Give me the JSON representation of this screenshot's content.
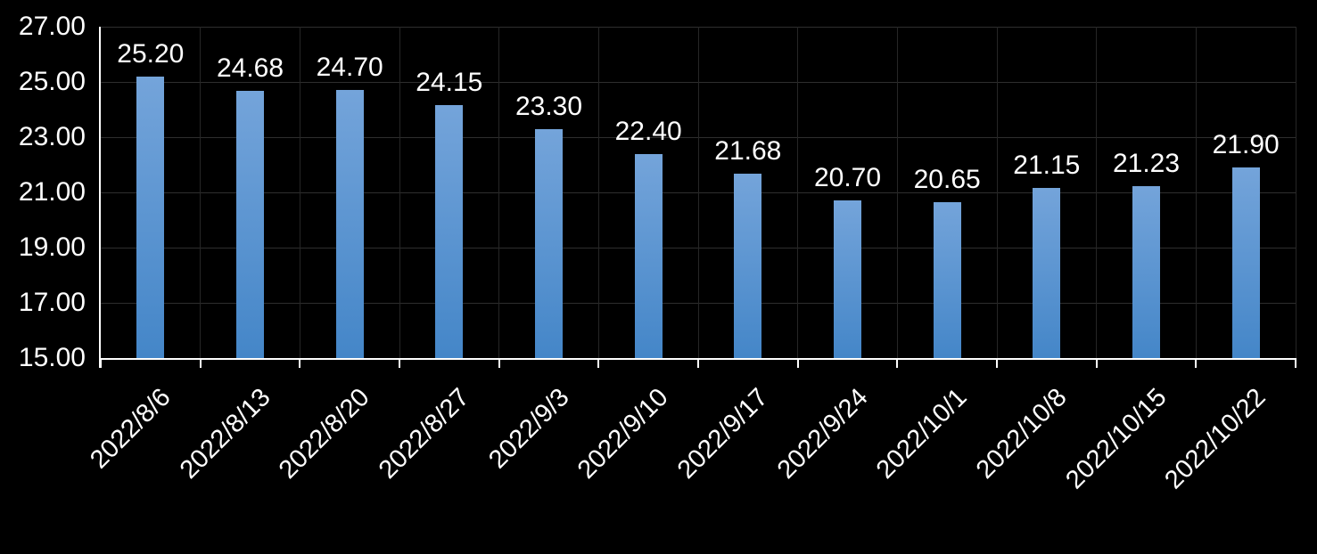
{
  "chart_data": {
    "type": "bar",
    "title": "",
    "xlabel": "",
    "ylabel": "",
    "categories": [
      "2022/8/6",
      "2022/8/13",
      "2022/8/20",
      "2022/8/27",
      "2022/9/3",
      "2022/9/10",
      "2022/9/17",
      "2022/9/24",
      "2022/10/1",
      "2022/10/8",
      "2022/10/15",
      "2022/10/22"
    ],
    "values": [
      25.2,
      24.68,
      24.7,
      24.15,
      23.3,
      22.4,
      21.68,
      20.7,
      20.65,
      21.15,
      21.23,
      21.9
    ],
    "value_labels": [
      "25.20",
      "24.68",
      "24.70",
      "24.15",
      "23.30",
      "22.40",
      "21.68",
      "20.70",
      "20.65",
      "21.15",
      "21.23",
      "21.90"
    ],
    "y_tick_labels": [
      "27.00",
      "25.00",
      "23.00",
      "21.00",
      "19.00",
      "17.00",
      "15.00"
    ],
    "ylim": [
      15,
      27
    ],
    "y_tick_step": 2,
    "grid": true,
    "legend": false,
    "colors": {
      "background": "#000000",
      "bar_gradient_top": "#74A4DA",
      "bar_gradient_bottom": "#4486C8",
      "gridline_horizontal": "#2E2E2E",
      "gridline_vertical": "#262626",
      "axis_line": "#FFFFFF",
      "label_text": "#FFFFFF"
    }
  }
}
